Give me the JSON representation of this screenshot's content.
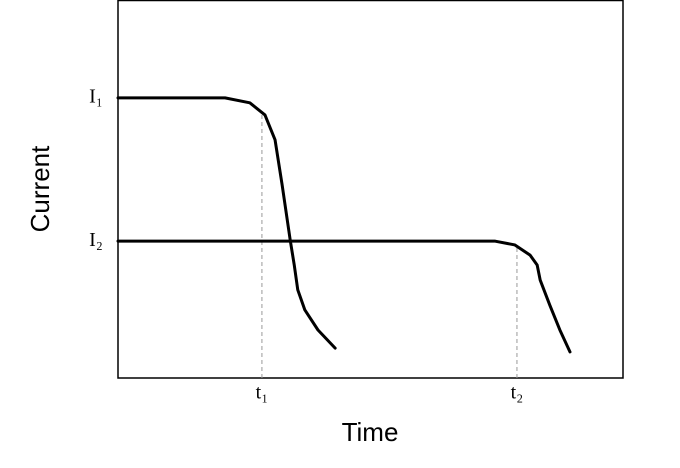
{
  "chart_data": {
    "type": "line",
    "x_label": "Time",
    "y_label": "Current",
    "xlim": [
      0,
      100
    ],
    "ylim": [
      0,
      100
    ],
    "xticks": [
      {
        "value": 28.5,
        "label": "t₁"
      },
      {
        "value": 79.0,
        "label": "t₂"
      }
    ],
    "yticks": [
      {
        "value": 74.1,
        "label": "I₁"
      },
      {
        "value": 36.2,
        "label": "I₂"
      }
    ],
    "series": [
      {
        "color": "#000000",
        "x": [
          0,
          21.2,
          26.1,
          29.1,
          31.1,
          32.5,
          34.1,
          34.9,
          35.6,
          37.0,
          39.6,
          43.0
        ],
        "values": [
          74.1,
          74.1,
          72.8,
          69.6,
          63.0,
          51.1,
          36.5,
          29.9,
          23.3,
          18.0,
          12.7,
          7.9
        ]
      },
      {
        "color": "#000000",
        "x": [
          0,
          74.7,
          78.6,
          81.6,
          83.0,
          83.6,
          85.5,
          87.5,
          89.5
        ],
        "values": [
          36.2,
          36.2,
          35.2,
          32.5,
          29.9,
          25.9,
          19.3,
          12.7,
          6.9
        ]
      }
    ]
  }
}
